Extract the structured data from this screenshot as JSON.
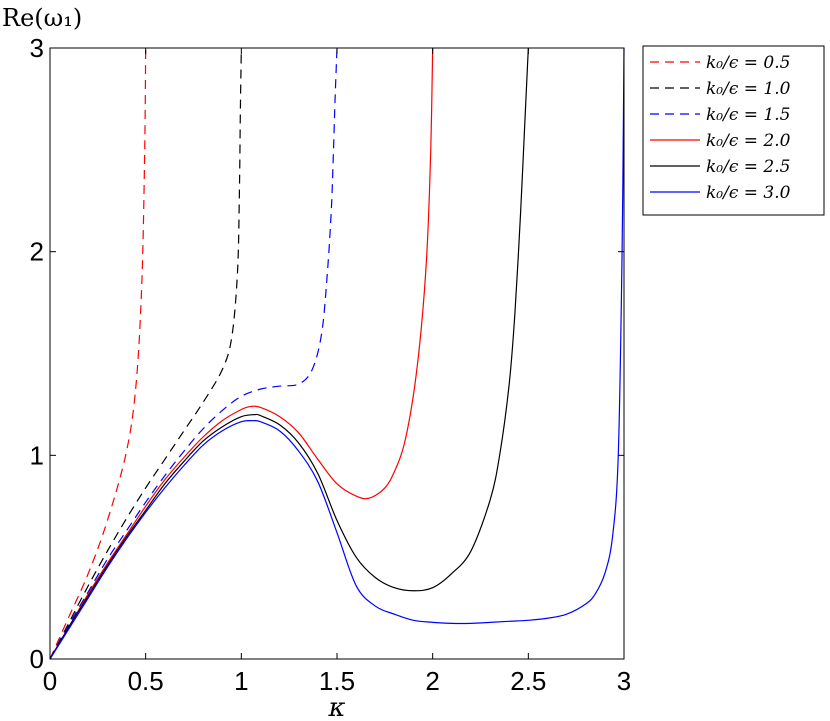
{
  "chart_data": {
    "type": "line",
    "title": "",
    "xlabel": "κ",
    "ylabel": "Re(ω₁)",
    "xlim": [
      0,
      3
    ],
    "ylim": [
      0,
      3
    ],
    "xticks": [
      "0",
      "0.5",
      "1",
      "1.5",
      "2",
      "2.5",
      "3"
    ],
    "yticks": [
      "0",
      "1",
      "2",
      "3"
    ],
    "grid": false,
    "legend_position": "outside-top-right",
    "series": [
      {
        "name": "k₀/ϵ = 0.5",
        "color": "#ff0000",
        "dash": "dashed",
        "x": [
          0,
          0.1,
          0.2,
          0.3,
          0.4,
          0.45,
          0.48,
          0.495,
          0.5
        ],
        "y": [
          0,
          0.21,
          0.42,
          0.68,
          1.02,
          1.35,
          1.85,
          2.5,
          3.0
        ]
      },
      {
        "name": "k₀/ϵ = 1.0",
        "color": "#000000",
        "dash": "dashed",
        "x": [
          0,
          0.1,
          0.2,
          0.3,
          0.4,
          0.5,
          0.6,
          0.7,
          0.8,
          0.9,
          0.95,
          0.98,
          0.99,
          0.995,
          1.0
        ],
        "y": [
          0,
          0.18,
          0.36,
          0.53,
          0.69,
          0.84,
          0.98,
          1.12,
          1.26,
          1.42,
          1.58,
          1.9,
          2.3,
          2.7,
          3.0
        ]
      },
      {
        "name": "k₀/ϵ = 1.5",
        "color": "#0000ff",
        "dash": "dashed",
        "x": [
          0,
          0.1,
          0.2,
          0.3,
          0.4,
          0.5,
          0.6,
          0.7,
          0.8,
          0.9,
          1.0,
          1.1,
          1.2,
          1.3,
          1.37,
          1.42,
          1.45,
          1.47,
          1.48,
          1.49,
          1.5
        ],
        "y": [
          0,
          0.17,
          0.33,
          0.49,
          0.63,
          0.77,
          0.9,
          1.02,
          1.13,
          1.22,
          1.29,
          1.325,
          1.34,
          1.35,
          1.42,
          1.6,
          1.9,
          2.2,
          2.45,
          2.75,
          3.0
        ]
      },
      {
        "name": "k₀/ϵ = 2.0",
        "color": "#ff0000",
        "dash": "solid",
        "x": [
          0,
          0.1,
          0.2,
          0.3,
          0.4,
          0.5,
          0.6,
          0.7,
          0.8,
          0.9,
          1.0,
          1.05,
          1.1,
          1.2,
          1.3,
          1.4,
          1.5,
          1.6,
          1.67,
          1.75,
          1.8,
          1.85,
          1.9,
          1.94,
          1.97,
          1.99,
          2.0
        ],
        "y": [
          0,
          0.16,
          0.32,
          0.47,
          0.61,
          0.75,
          0.88,
          0.99,
          1.09,
          1.17,
          1.225,
          1.24,
          1.235,
          1.19,
          1.11,
          0.98,
          0.86,
          0.8,
          0.79,
          0.84,
          0.92,
          1.05,
          1.3,
          1.62,
          2.0,
          2.5,
          3.0
        ]
      },
      {
        "name": "k₀/ϵ = 2.5",
        "color": "#000000",
        "dash": "solid",
        "x": [
          0,
          0.1,
          0.2,
          0.3,
          0.4,
          0.5,
          0.6,
          0.7,
          0.8,
          0.9,
          1.0,
          1.07,
          1.1,
          1.2,
          1.3,
          1.4,
          1.5,
          1.6,
          1.7,
          1.8,
          1.9,
          2.0,
          2.1,
          2.2,
          2.3,
          2.35,
          2.4,
          2.43,
          2.46,
          2.48,
          2.5
        ],
        "y": [
          0,
          0.16,
          0.31,
          0.46,
          0.6,
          0.73,
          0.86,
          0.97,
          1.07,
          1.14,
          1.19,
          1.2,
          1.195,
          1.15,
          1.06,
          0.91,
          0.68,
          0.5,
          0.4,
          0.35,
          0.335,
          0.35,
          0.42,
          0.53,
          0.78,
          1.0,
          1.35,
          1.7,
          2.2,
          2.6,
          3.0
        ]
      },
      {
        "name": "k₀/ϵ = 3.0",
        "color": "#0000ff",
        "dash": "solid",
        "x": [
          0,
          0.1,
          0.2,
          0.3,
          0.4,
          0.5,
          0.6,
          0.7,
          0.8,
          0.9,
          1.0,
          1.06,
          1.1,
          1.2,
          1.3,
          1.4,
          1.5,
          1.6,
          1.7,
          1.8,
          1.9,
          2.0,
          2.1,
          2.2,
          2.3,
          2.4,
          2.5,
          2.6,
          2.7,
          2.8,
          2.85,
          2.9,
          2.94,
          2.97,
          2.99,
          3.0
        ],
        "y": [
          0,
          0.15,
          0.3,
          0.45,
          0.59,
          0.72,
          0.84,
          0.95,
          1.05,
          1.12,
          1.165,
          1.17,
          1.165,
          1.12,
          1.02,
          0.87,
          0.62,
          0.36,
          0.26,
          0.22,
          0.19,
          0.18,
          0.175,
          0.175,
          0.18,
          0.185,
          0.19,
          0.2,
          0.22,
          0.27,
          0.32,
          0.42,
          0.6,
          1.0,
          2.0,
          3.0
        ]
      }
    ]
  }
}
